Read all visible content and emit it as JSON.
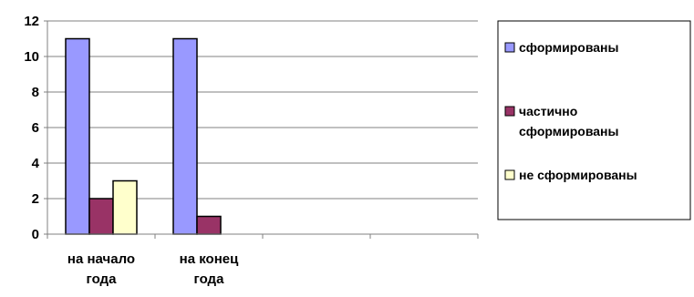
{
  "chart_data": {
    "type": "bar",
    "title": "",
    "xlabel": "",
    "ylabel": "",
    "categories": [
      [
        "на начало",
        "года"
      ],
      [
        "на конец",
        "года"
      ],
      [
        ""
      ],
      [
        ""
      ]
    ],
    "series": [
      {
        "name": "сформированы",
        "color": "#9999ff",
        "values": [
          11,
          11,
          null,
          null
        ]
      },
      {
        "name": [
          "частично",
          "сформированы"
        ],
        "color": "#993366",
        "values": [
          2,
          1,
          null,
          null
        ]
      },
      {
        "name": "не сформированы",
        "color": "#ffffcc",
        "values": [
          3,
          null,
          null,
          null
        ]
      }
    ],
    "ylim": [
      0,
      12
    ],
    "yticks": [
      0,
      2,
      4,
      6,
      8,
      10,
      12
    ],
    "grid": true,
    "legend_position": "right"
  }
}
